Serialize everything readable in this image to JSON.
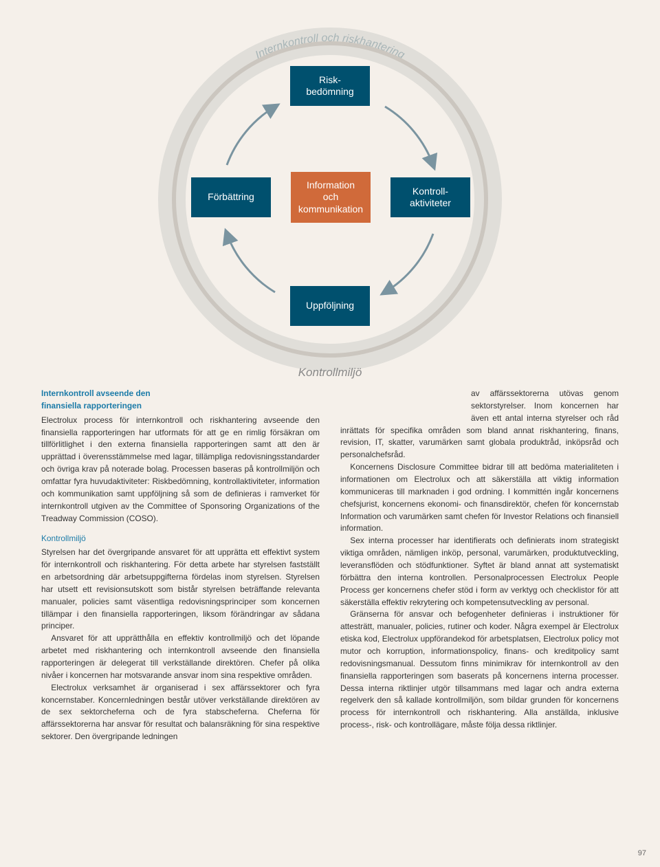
{
  "diagram": {
    "outer_top_label": "Internkontroll och riskhantering",
    "outer_bottom_label": "Kontrollmiljö",
    "nodes": {
      "top": "Risk-\nbedömning",
      "left": "Förbättring",
      "center": "Information\noch\nkommunikation",
      "right": "Kontroll-\naktiviteter",
      "bottom": "Uppföljning"
    },
    "colors": {
      "node_primary": "#00506e",
      "node_center": "#d06a3a",
      "ring": "#cbc6bf",
      "outer_arc": "#e0ded9",
      "arrow": "#7a94a0"
    }
  },
  "text": {
    "heading_main_l1": "Internkontroll avseende den",
    "heading_main_l2": "finansiella rapporteringen",
    "para1": "Electrolux process för internkontroll och riskhantering avseende den finansiella rapporteringen har utformats för att ge en rimlig försäkran om tillförlitlighet i den externa finansiella rapporteringen samt att den är upprättad i överensstämmelse med lagar, tillämpliga redovisningsstandarder och övriga krav på noterade bolag. Processen baseras på kontrollmiljön och omfattar fyra huvudaktiviteter: Riskbedömning, kontrollaktiviteter, information och kommunikation samt uppföljning så som de definieras i ramverket för internkontroll utgiven av the Committee of Sponsoring Organizations of the Treadway Commission (COSO).",
    "sub1": "Kontrollmiljö",
    "para2": "Styrelsen har det övergripande ansvaret för att upprätta ett effektivt system för internkontroll och riskhantering. För detta arbete har styrelsen fastställt en arbetsordning där arbetsuppgifterna fördelas inom styrelsen. Styrelsen har utsett ett revisionsutskott som bistår styrelsen beträffande relevanta manualer, policies samt väsentliga redovisningsprinciper som koncernen tillämpar i den finansiella rapporteringen, liksom förändringar av sådana principer.",
    "para3": "Ansvaret för att upprätthålla en effektiv kontrollmiljö och det löpande arbetet med riskhantering och internkontroll avseende den finansiella rapporteringen är delegerat till verkställande direktören. Chefer på olika nivåer i koncernen har motsvarande ansvar inom sina respektive områden.",
    "para4": "Electrolux verksamhet är organiserad i sex affärssektorer och fyra koncernstaber. Koncernledningen består utöver verkställande direktören av de sex sektorcheferna och de fyra stabscheferna. Cheferna för affärssektorerna har ansvar för resultat och balansräkning för sina respektive sektorer. Den övergripande ledningen",
    "para_r1": "av affärssektorerna utövas genom sektorstyrelser. Inom koncernen har även ett antal interna styrelser och råd inrättats för specifika områden som bland annat riskhantering, finans, revision, IT, skatter, varumärken samt globala produktråd, inköpsråd och personalchefsråd.",
    "para_r2": "Koncernens Disclosure Committee bidrar till att bedöma materialiteten i informationen om Electrolux och att säkerställa att viktig information kommuniceras till marknaden i god ordning. I kommittén ingår koncernens chefsjurist, koncernens ekonomi- och finansdirektör, chefen för koncernstab Information och varumärken samt chefen för Investor Relations och finansiell information.",
    "para_r3": "Sex interna processer har identifierats och definierats inom strategiskt viktiga områden, nämligen inköp, personal, varumärken, produktutveckling, leveransflöden och stödfunktioner. Syftet är bland annat att systematiskt förbättra den interna kontrollen. Personalprocessen Electrolux People Process ger koncernens chefer stöd i form av verktyg och checklistor för att säkerställa effektiv rekrytering och kompetensutveckling av personal.",
    "para_r4": "Gränserna för ansvar och befogenheter definieras i instruktioner för attesträtt, manualer, policies, rutiner och koder. Några exempel är Electrolux etiska kod, Electrolux uppförandekod för arbetsplatsen, Electrolux policy mot mutor och korruption, informationspolicy, finans- och kreditpolicy samt redovisningsmanual. Dessutom finns minimikrav för internkontroll av den finansiella rapporteringen som baserats på koncernens interna processer. Dessa interna riktlinjer utgör tillsammans med lagar och andra externa regelverk den så kallade kontrollmiljön, som bildar grunden för koncernens process för internkontroll och riskhantering. Alla anställda, inklusive process-, risk- och kontrollägare, måste följa dessa riktlinjer."
  },
  "page_number": "97"
}
